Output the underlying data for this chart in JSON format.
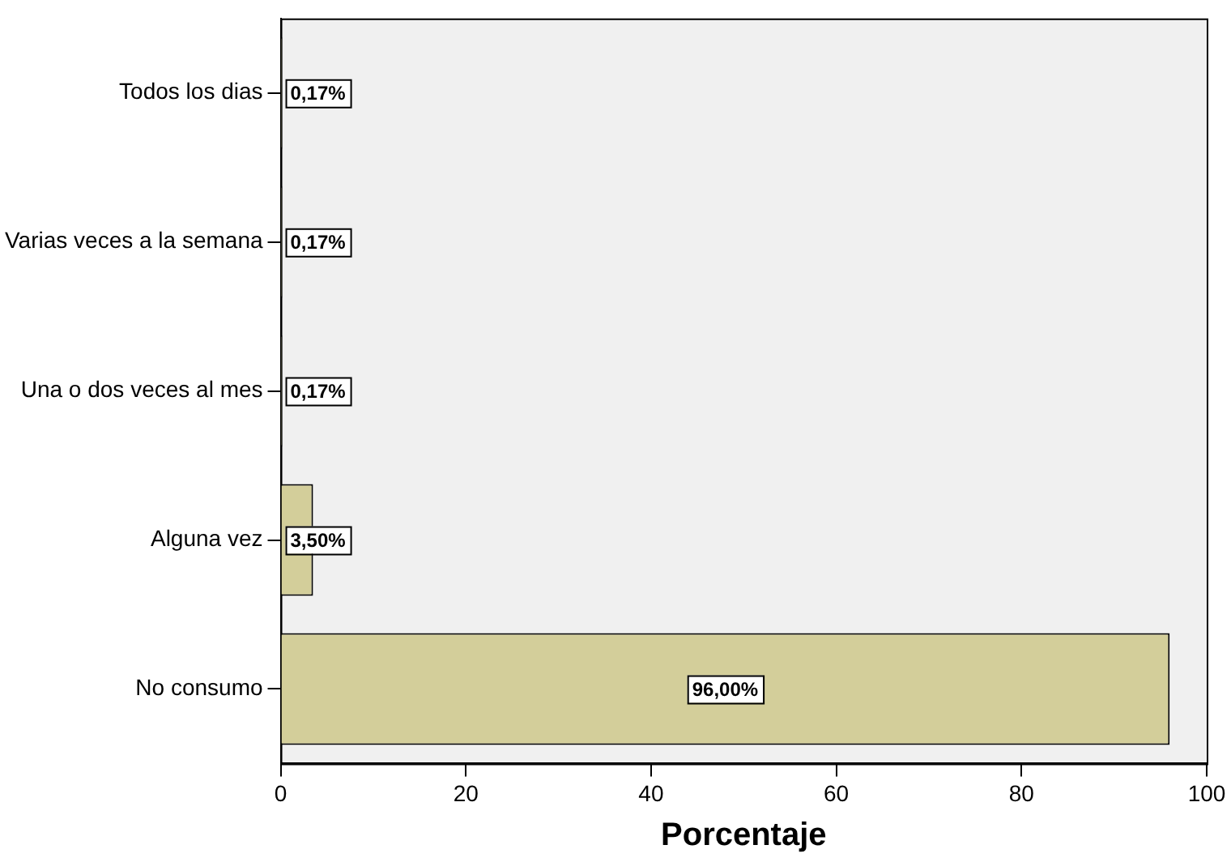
{
  "chart_data": {
    "type": "bar",
    "orientation": "horizontal",
    "xlabel": "Porcentaje",
    "categories": [
      "Todos los dias",
      "Varias veces a la semana",
      "Una o dos veces al mes",
      "Alguna vez",
      "No consumo"
    ],
    "values": [
      0.17,
      0.17,
      0.17,
      3.5,
      96
    ],
    "value_labels": [
      "0,17%",
      "0,17%",
      "0,17%",
      "3,50%",
      "96,00%"
    ],
    "color": "#d3ce9a",
    "xlim": [
      0,
      100
    ],
    "xticks": [
      0,
      20,
      40,
      60,
      80,
      100
    ],
    "grid": false,
    "legend": false
  }
}
